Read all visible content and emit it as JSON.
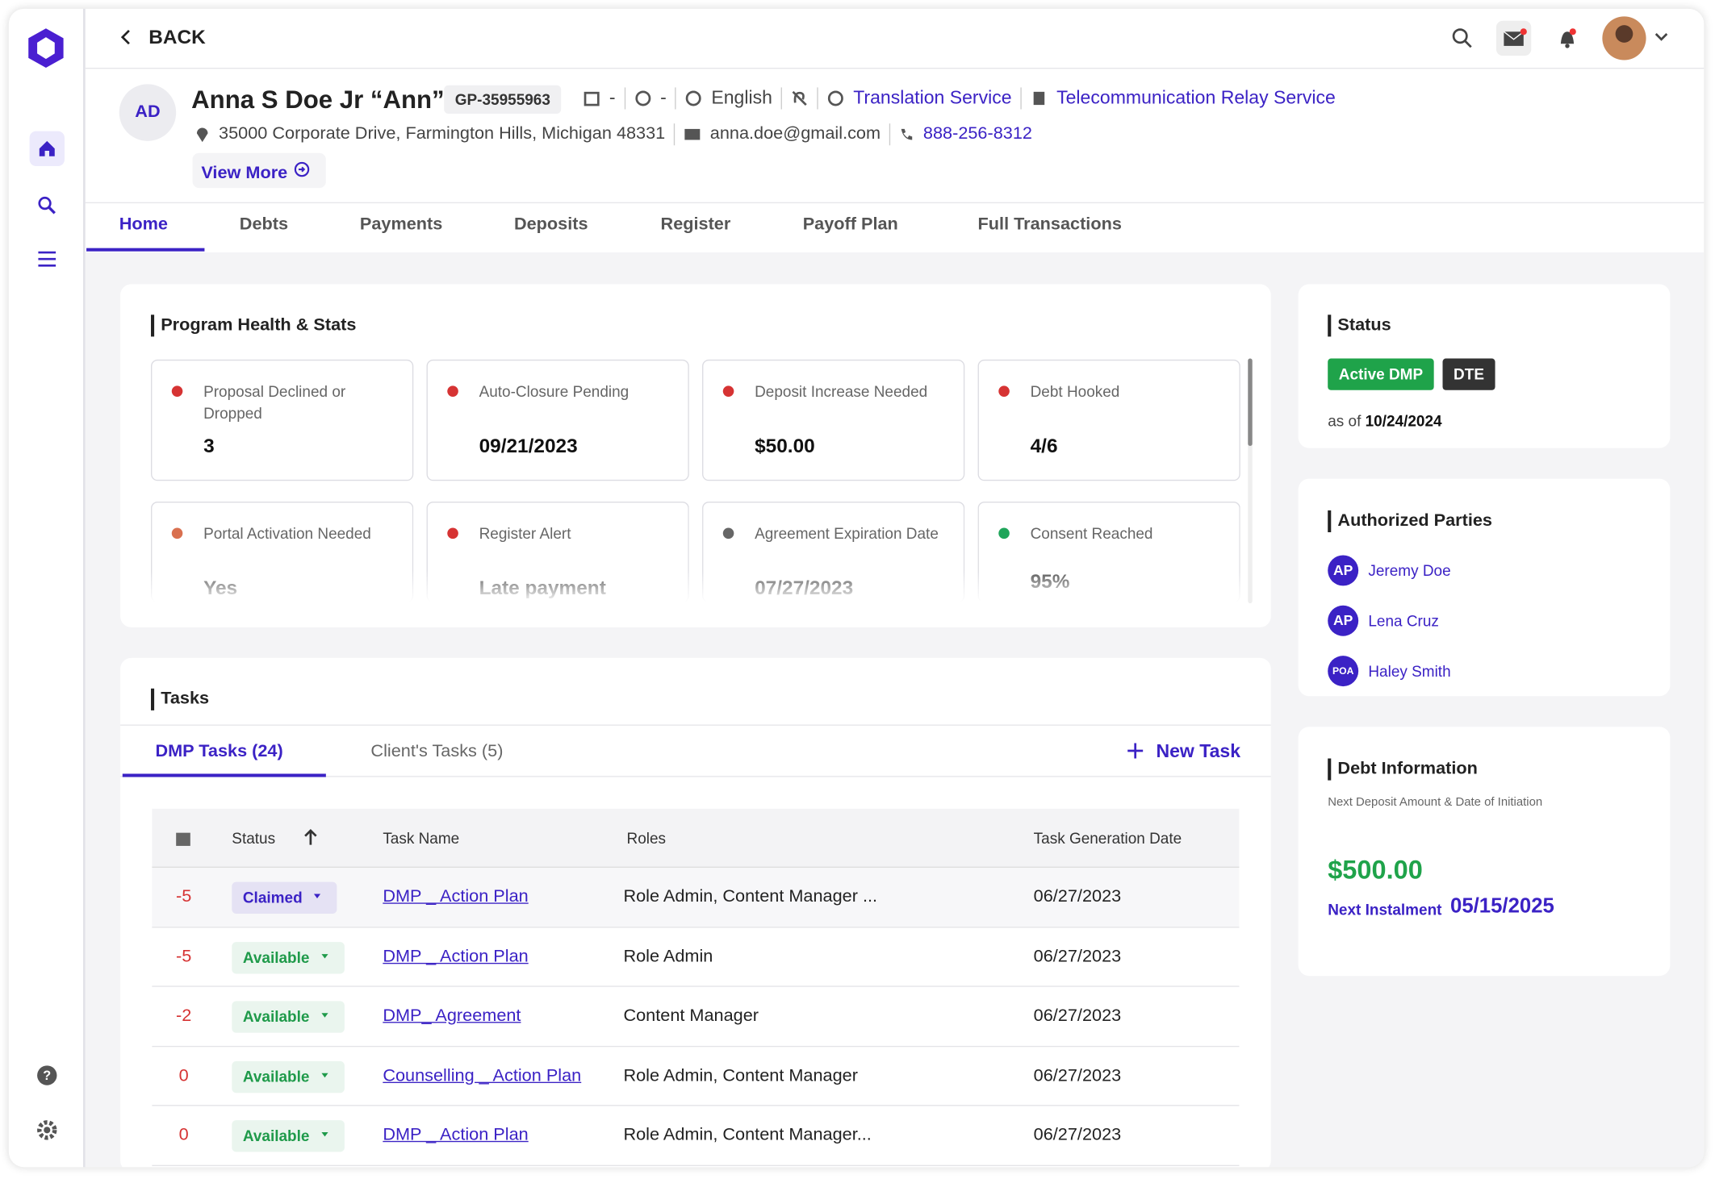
{
  "header": {
    "back": "BACK",
    "initials": "AD",
    "name": "Anna S Doe Jr “Ann”",
    "client_id": "GP-35955963",
    "dob": "-",
    "insurance": "-",
    "language": "English",
    "translation": "Translation Service",
    "relay": "Telecommunication Relay Service",
    "address": "35000 Corporate Drive, Farmington Hills, Michigan 48331",
    "email": "anna.doe@gmail.com",
    "phone": "888-256-8312",
    "view_more": "View More"
  },
  "tabs": [
    "Home",
    "Debts",
    "Payments",
    "Deposits",
    "Register",
    "Payoff Plan",
    "Full Transactions"
  ],
  "health": {
    "title": "Program Health & Stats",
    "cards": [
      {
        "label": "Proposal Declined or Dropped",
        "value": "3",
        "color": "#d63333"
      },
      {
        "label": "Auto-Closure Pending",
        "value": "09/21/2023",
        "color": "#d63333"
      },
      {
        "label": "Deposit Increase Needed",
        "value": "$50.00",
        "color": "#d63333"
      },
      {
        "label": "Debt Hooked",
        "value": "4/6",
        "color": "#d63333"
      },
      {
        "label": "Portal Activation Needed",
        "value": "Yes",
        "color": "#d9704f"
      },
      {
        "label": "Register Alert",
        "value": "Late payment",
        "color": "#d63333"
      },
      {
        "label": "Agreement Expiration Date",
        "value": "07/27/2023",
        "color": "#666666"
      },
      {
        "label": "Consent Reached",
        "value": "95%",
        "color": "#1fa55a"
      }
    ]
  },
  "tasks": {
    "title": "Tasks",
    "tabs": [
      "DMP Tasks (24)",
      "Client's Tasks (5)"
    ],
    "new_task": "New Task",
    "columns": [
      "Status",
      "Task Name",
      "Roles",
      "Task Generation Date"
    ],
    "rows": [
      {
        "days": -5,
        "status": "Claimed",
        "status_color": "#3b22c5",
        "name": "DMP _ Action Plan",
        "roles": "Role Admin, Content Manager ...",
        "date": "06/27/2023"
      },
      {
        "days": -5,
        "status": "Available",
        "status_color": "#1f9a4a",
        "name": "DMP _ Action Plan",
        "roles": "Role Admin",
        "date": "06/27/2023"
      },
      {
        "days": -2,
        "status": "Available",
        "status_color": "#1f9a4a",
        "name": "DMP_ Agreement",
        "roles": "Content Manager",
        "date": "06/27/2023"
      },
      {
        "days": 0,
        "status": "Available",
        "status_color": "#1f9a4a",
        "name": "Counselling _ Action Plan",
        "roles": "Role Admin, Content Manager",
        "date": "06/27/2023"
      },
      {
        "days": 0,
        "status": "Available",
        "status_color": "#1f9a4a",
        "name": "DMP _ Action Plan",
        "roles": "Role Admin, Content Manager...",
        "date": "06/27/2023"
      }
    ]
  },
  "status": {
    "title": "Status",
    "badges": [
      {
        "text": "Active DMP",
        "color": "#1fa34a"
      },
      {
        "text": "DTE",
        "color": "#333333"
      }
    ],
    "as_of": "as of",
    "date": "10/24/2024"
  },
  "parties": {
    "title": "Authorized Parties",
    "items": [
      {
        "initials": "AP",
        "name": "Jeremy Doe"
      },
      {
        "initials": "AP",
        "name": "Lena Cruz"
      },
      {
        "initials": "POA",
        "name": "Haley Smith"
      }
    ]
  },
  "debt": {
    "title": "Debt Information",
    "subtitle": "Next Deposit Amount & Date of Initiation",
    "amount": "$500.00",
    "next_label": "Next Instalment",
    "next_date": "05/15/2025"
  }
}
